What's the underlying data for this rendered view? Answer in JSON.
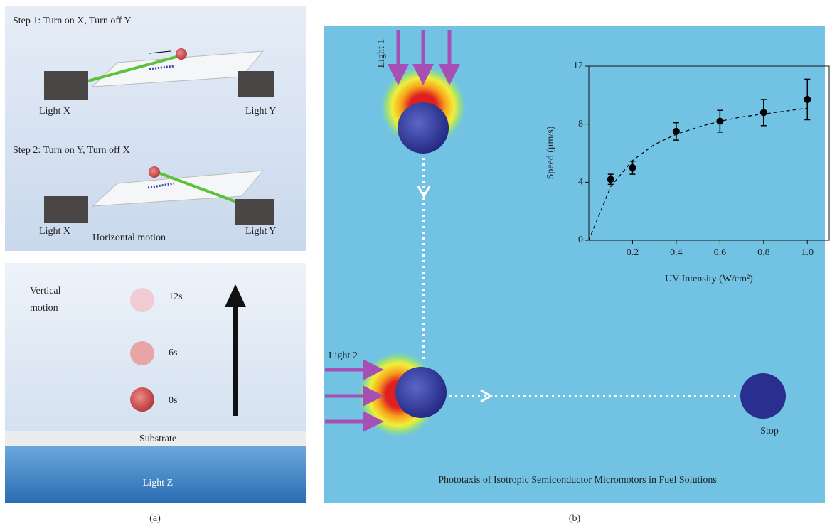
{
  "panel_a": {
    "step1": "Step 1: Turn on X, Turn off Y",
    "step1_light_x": "Light X",
    "step1_light_y": "Light Y",
    "step2": "Step 2: Turn on Y, Turn off X",
    "step2_light_x": "Light X",
    "horizontal_motion": "Horizontal motion",
    "step2_light_y": "Light Y",
    "vertical_motion": [
      "Vertical",
      "motion"
    ],
    "times": [
      "12s",
      "6s",
      "0s"
    ],
    "substrate": "Substrate",
    "light_z": "Light Z",
    "label": "(a)"
  },
  "panel_b": {
    "light1": "Light 1",
    "light2": "Light 2",
    "stop": "Stop",
    "caption": "Phototaxis of Isotropic Semiconductor Micromotors in Fuel Solutions",
    "label": "(b)"
  },
  "chart_data": {
    "type": "scatter",
    "x_label": "UV Intensity (W/cm²)",
    "y_label": "Speed (μm/s)",
    "x": [
      0.1,
      0.2,
      0.4,
      0.6,
      0.8,
      1.0
    ],
    "values": [
      4.2,
      5.0,
      7.5,
      8.2,
      8.8,
      9.7
    ],
    "errors": [
      0.35,
      0.45,
      0.6,
      0.75,
      0.9,
      1.4
    ],
    "color": "#000000",
    "fit": {
      "x": [
        0,
        0.1,
        0.2,
        0.3,
        0.4,
        0.5,
        0.6,
        0.7,
        0.8,
        0.9,
        1.0
      ],
      "values": [
        0,
        3.7,
        5.5,
        6.6,
        7.3,
        7.8,
        8.2,
        8.5,
        8.7,
        8.9,
        9.1
      ],
      "dashed": true
    },
    "xlim": [
      0,
      1.1
    ],
    "xticks": [
      0.2,
      0.4,
      0.6,
      0.8,
      {
        "value": 1,
        "label": "1.0"
      }
    ],
    "ylim": [
      0,
      12
    ],
    "yticks": [
      0,
      4,
      8,
      12
    ]
  }
}
